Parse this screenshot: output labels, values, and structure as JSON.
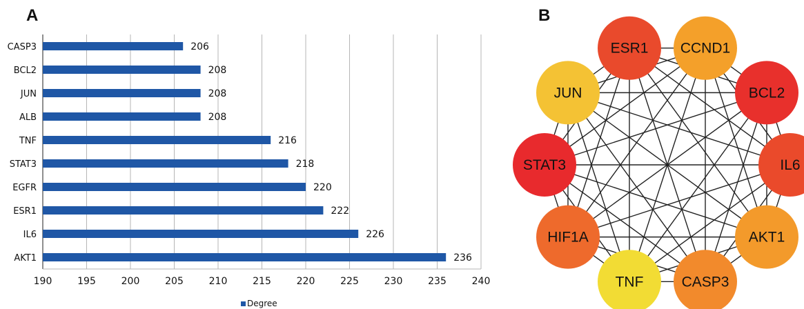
{
  "panels": {
    "left_label": "A",
    "right_label": "B"
  },
  "chart_data": [
    {
      "type": "bar",
      "orientation": "horizontal",
      "categories": [
        "CASP3",
        "BCL2",
        "JUN",
        "ALB",
        "TNF",
        "STAT3",
        "EGFR",
        "ESR1",
        "IL6",
        "AKT1"
      ],
      "series": [
        {
          "name": "Degree",
          "values": [
            206,
            208,
            208,
            208,
            216,
            218,
            220,
            222,
            226,
            236
          ],
          "color": "#1f57a6"
        }
      ],
      "data_labels": [
        "206",
        "208",
        "208",
        "208",
        "216",
        "218",
        "220",
        "222",
        "226",
        "236"
      ],
      "xlim": [
        190,
        240
      ],
      "x_ticks": [
        "190",
        "195",
        "200",
        "205",
        "210",
        "215",
        "220",
        "225",
        "230",
        "235",
        "240"
      ],
      "grid": "vertical",
      "legend": "bottom-center"
    }
  ],
  "network": {
    "nodes": [
      {
        "label": "ESR1",
        "color": "#e94a2c"
      },
      {
        "label": "CCND1",
        "color": "#f4a02a"
      },
      {
        "label": "BCL2",
        "color": "#e8302c"
      },
      {
        "label": "IL6",
        "color": "#ea4a2b"
      },
      {
        "label": "AKT1",
        "color": "#f39a2b"
      },
      {
        "label": "CASP3",
        "color": "#f28a2c"
      },
      {
        "label": "TNF",
        "color": "#f2dc34"
      },
      {
        "label": "HIF1A",
        "color": "#ee6a2c"
      },
      {
        "label": "STAT3",
        "color": "#e82a2d"
      },
      {
        "label": "JUN",
        "color": "#f4c234"
      }
    ],
    "edges": "complete",
    "edge_color": "#222222"
  }
}
